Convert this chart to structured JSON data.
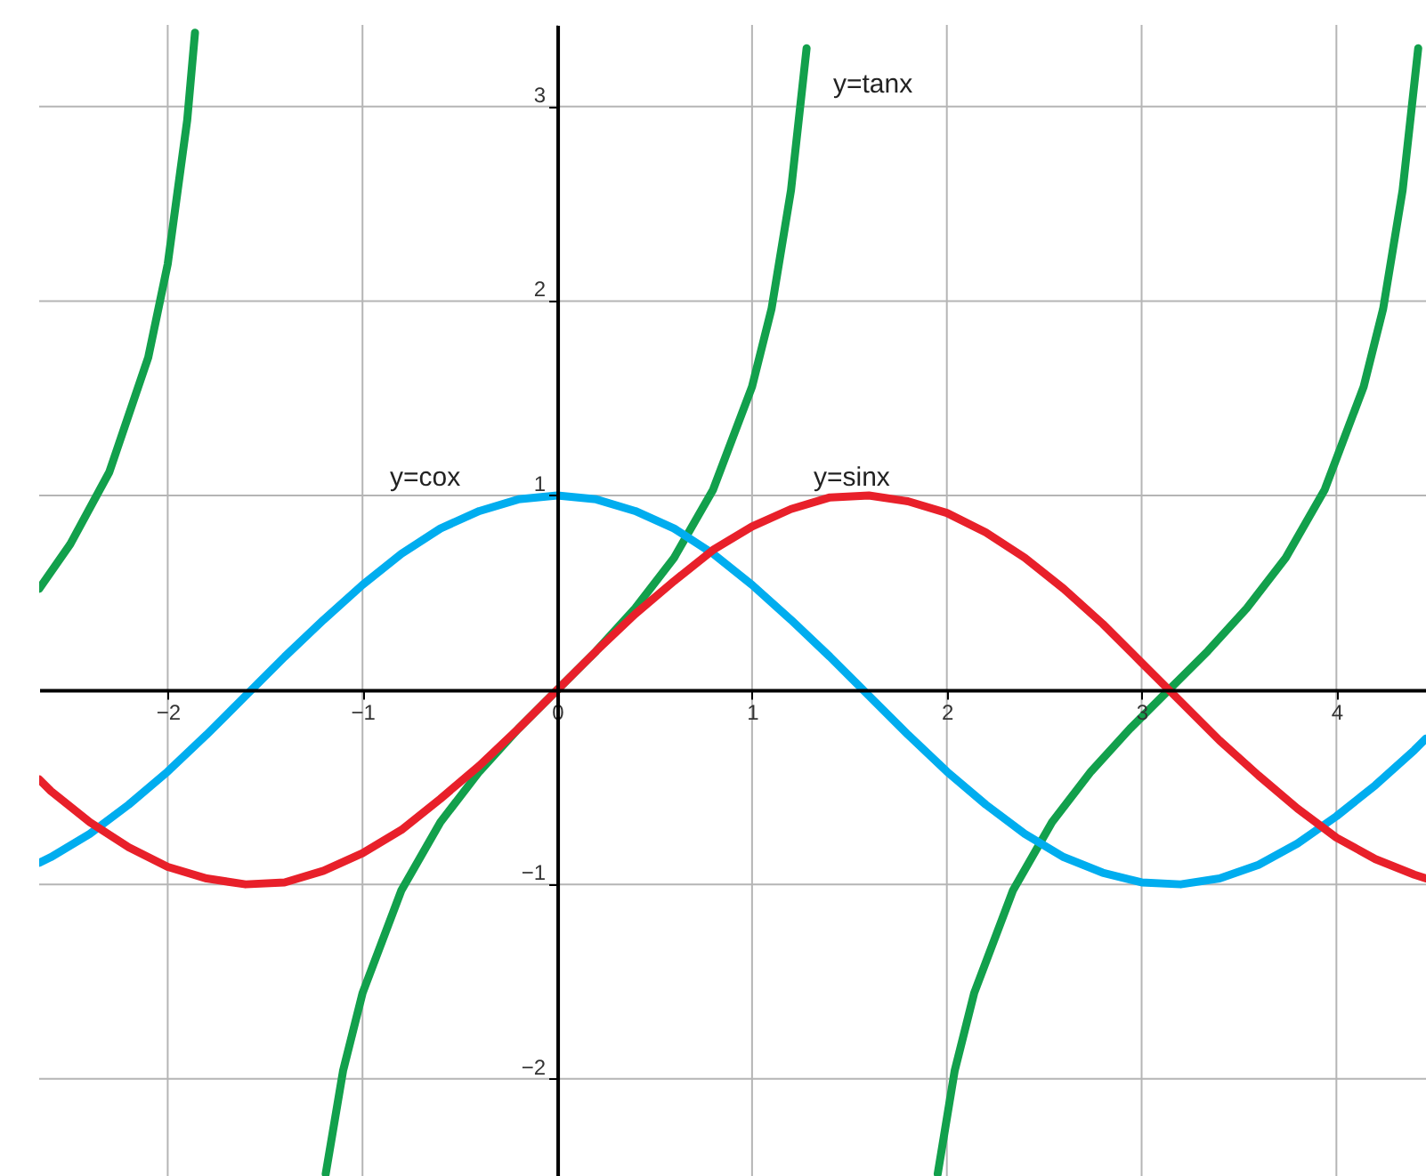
{
  "chart_data": {
    "type": "line",
    "xlim": [
      -2.66,
      4.46
    ],
    "ylim": [
      -2.5,
      3.42
    ],
    "xticks": [
      -2,
      -1,
      0,
      1,
      2,
      3,
      4
    ],
    "yticks": [
      -2,
      -1,
      1,
      2,
      3
    ],
    "grid": true,
    "marker": "none",
    "line_style": "solid",
    "series": [
      {
        "color": "#12a04c",
        "x": [
          -2.66,
          -2.5,
          -2.3,
          -2.1,
          -2.0,
          -1.9,
          -1.86,
          -1.5708,
          -1.189,
          -1.1,
          -1.0,
          -0.8,
          -0.6,
          -0.4,
          -0.2,
          0,
          0.2,
          0.4,
          0.6,
          0.8,
          1.0,
          1.1,
          1.2,
          1.28,
          1.5708,
          1.953,
          2.04,
          2.14,
          2.34,
          2.54,
          2.74,
          2.94,
          3.14,
          3.34,
          3.54,
          3.74,
          3.94,
          4.14,
          4.24,
          4.34,
          4.42
        ],
        "values": [
          0.52,
          0.75,
          1.12,
          1.71,
          2.19,
          2.93,
          3.38,
          null,
          -2.49,
          -1.96,
          -1.56,
          -1.03,
          -0.68,
          -0.42,
          -0.2,
          0,
          0.2,
          0.42,
          0.68,
          1.03,
          1.56,
          1.96,
          2.57,
          3.3,
          null,
          -2.49,
          -1.96,
          -1.56,
          -1.03,
          -0.68,
          -0.42,
          -0.2,
          0,
          0.2,
          0.42,
          0.68,
          1.03,
          1.56,
          1.96,
          2.57,
          3.3
        ]
      },
      {
        "color": "#00adef",
        "x": [
          -2.66,
          -2.6,
          -2.4,
          -2.2,
          -2.0,
          -1.8,
          -1.6,
          -1.4,
          -1.2,
          -1.0,
          -0.8,
          -0.6,
          -0.4,
          -0.2,
          0,
          0.2,
          0.4,
          0.6,
          0.8,
          1.0,
          1.2,
          1.4,
          1.6,
          1.8,
          2.0,
          2.2,
          2.4,
          2.6,
          2.8,
          3.0,
          3.2,
          3.4,
          3.6,
          3.8,
          4.0,
          4.2,
          4.4,
          4.46
        ],
        "values": [
          -0.89,
          -0.86,
          -0.74,
          -0.59,
          -0.42,
          -0.23,
          -0.03,
          0.17,
          0.36,
          0.54,
          0.7,
          0.83,
          0.92,
          0.98,
          1,
          0.98,
          0.92,
          0.83,
          0.7,
          0.54,
          0.36,
          0.17,
          -0.03,
          -0.23,
          -0.42,
          -0.59,
          -0.74,
          -0.86,
          -0.94,
          -0.99,
          -1,
          -0.97,
          -0.9,
          -0.79,
          -0.65,
          -0.49,
          -0.31,
          -0.25
        ]
      },
      {
        "color": "#e8202a",
        "x": [
          -2.66,
          -2.6,
          -2.4,
          -2.2,
          -2.0,
          -1.8,
          -1.6,
          -1.4,
          -1.2,
          -1.0,
          -0.8,
          -0.6,
          -0.4,
          -0.2,
          0,
          0.2,
          0.4,
          0.6,
          0.8,
          1.0,
          1.2,
          1.4,
          1.6,
          1.8,
          2.0,
          2.2,
          2.4,
          2.6,
          2.8,
          3.0,
          3.2,
          3.4,
          3.6,
          3.8,
          4.0,
          4.2,
          4.4,
          4.46
        ],
        "values": [
          -0.46,
          -0.52,
          -0.68,
          -0.81,
          -0.91,
          -0.97,
          -1,
          -0.99,
          -0.93,
          -0.84,
          -0.72,
          -0.56,
          -0.39,
          -0.2,
          0,
          0.2,
          0.39,
          0.56,
          0.72,
          0.84,
          0.93,
          0.99,
          1,
          0.97,
          0.91,
          0.81,
          0.68,
          0.52,
          0.34,
          0.14,
          -0.06,
          -0.26,
          -0.44,
          -0.61,
          -0.76,
          -0.87,
          -0.95,
          -0.97
        ]
      }
    ],
    "annotations": [
      "y=tanx",
      "y=cox",
      "y=sinx"
    ]
  }
}
